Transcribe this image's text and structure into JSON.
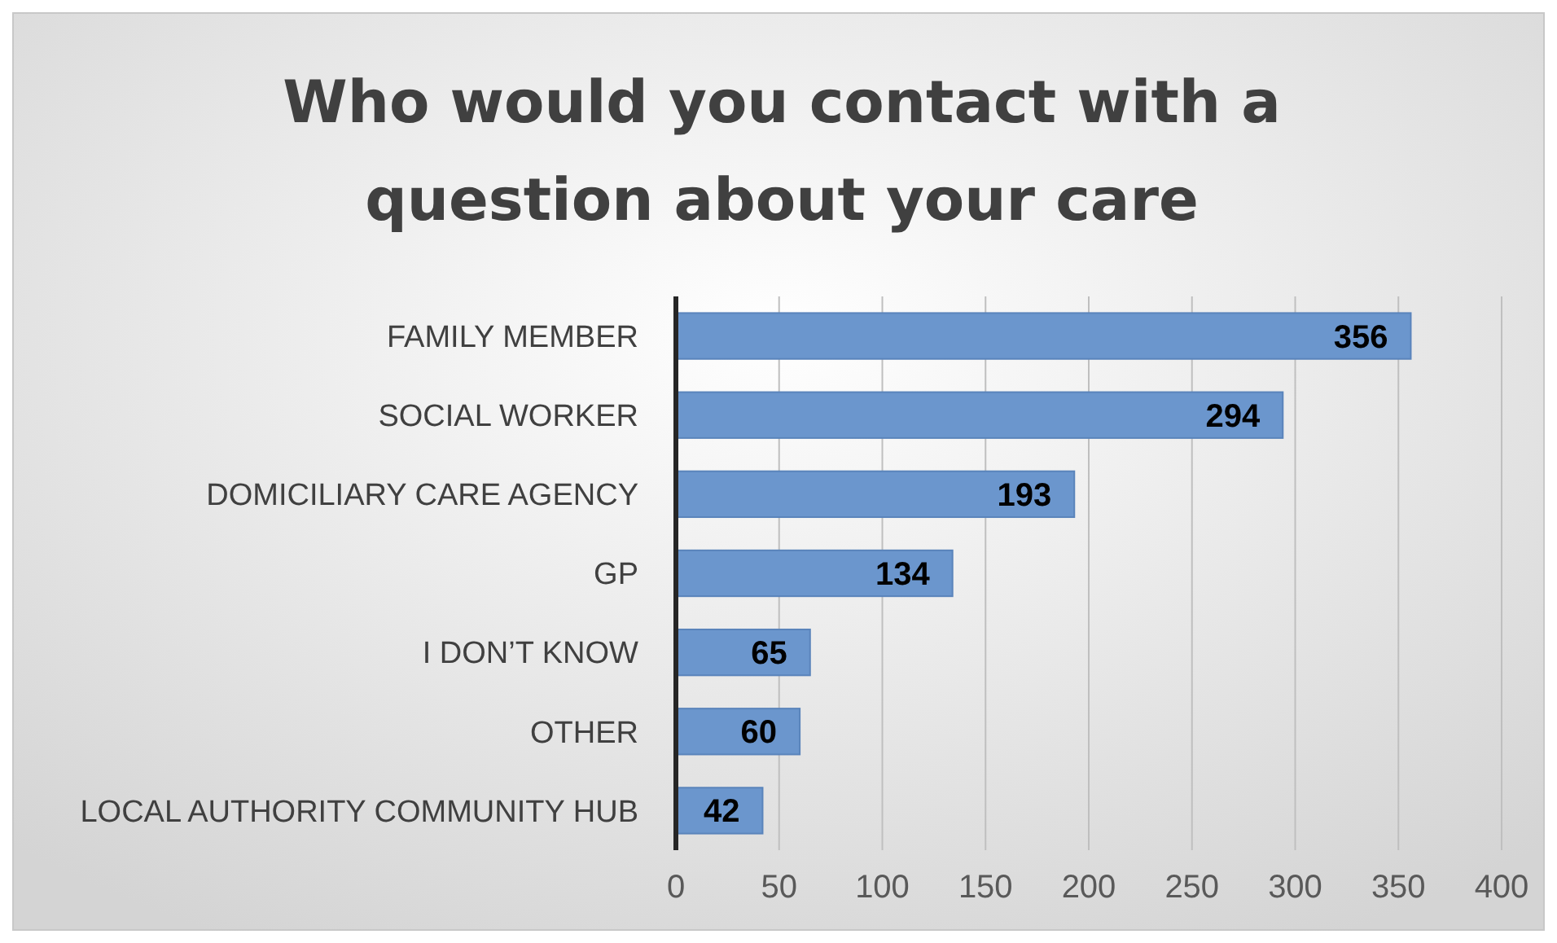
{
  "chart_data": {
    "type": "bar",
    "orientation": "horizontal",
    "title": "Who would you contact with a question about your care",
    "categories": [
      "FAMILY MEMBER",
      "SOCIAL WORKER",
      "DOMICILIARY CARE AGENCY",
      "GP",
      "I DON’T KNOW",
      "OTHER",
      "LOCAL AUTHORITY COMMUNITY HUB"
    ],
    "values": [
      356,
      294,
      193,
      134,
      65,
      60,
      42
    ],
    "color": "#6b96cd",
    "xlim": [
      0,
      400
    ],
    "xticks": [
      0,
      50,
      100,
      150,
      200,
      250,
      300,
      350,
      400
    ],
    "grid": "x",
    "data_labels": true
  }
}
